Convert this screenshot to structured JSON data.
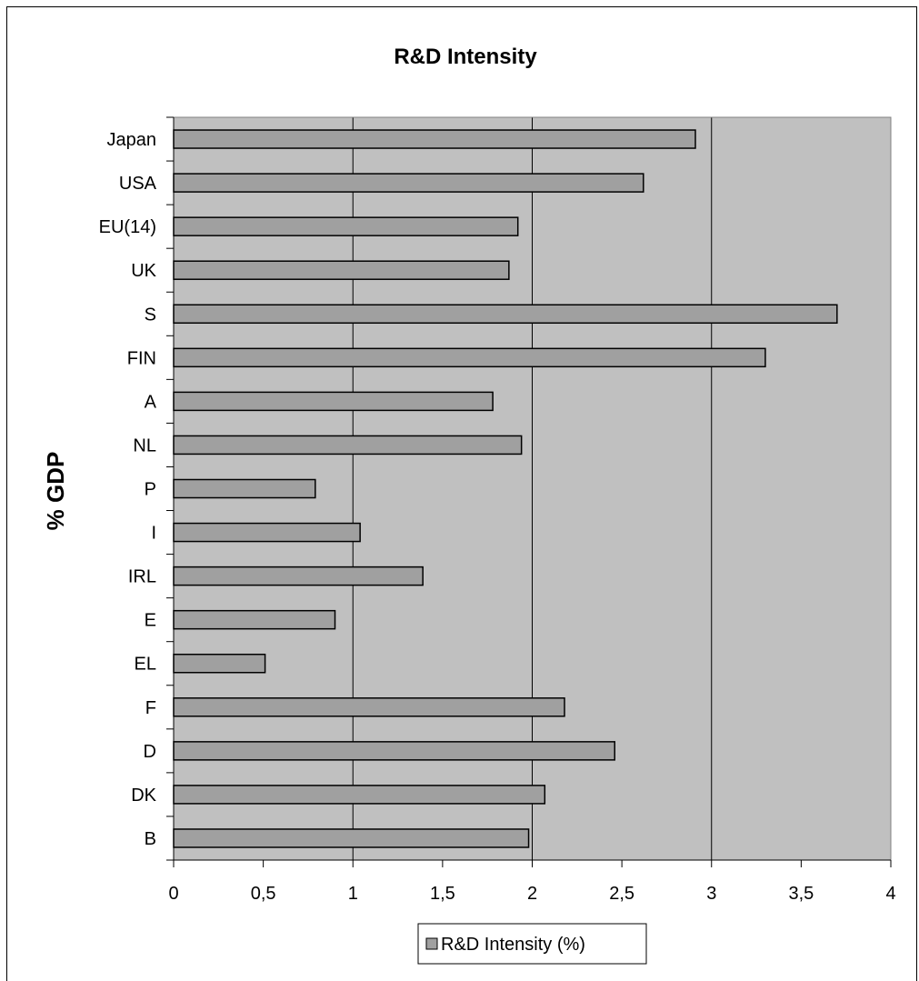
{
  "chart_data": {
    "type": "bar",
    "orientation": "horizontal",
    "title": "R&D Intensity",
    "xlabel": "",
    "ylabel": "% GDP",
    "xlim": [
      0,
      4
    ],
    "x_ticks": [
      0,
      0.5,
      1,
      1.5,
      2,
      2.5,
      3,
      3.5,
      4
    ],
    "x_tick_labels": [
      "0",
      "0,5",
      "1",
      "1,5",
      "2",
      "2,5",
      "3",
      "3,5",
      "4"
    ],
    "categories": [
      "Japan",
      "USA",
      "EU(14)",
      "UK",
      "S",
      "FIN",
      "A",
      "NL",
      "P",
      "I",
      "IRL",
      "E",
      "EL",
      "F",
      "D",
      "DK",
      "B"
    ],
    "series": [
      {
        "name": "R&D Intensity (%)",
        "values": [
          2.91,
          2.62,
          1.92,
          1.87,
          3.7,
          3.3,
          1.78,
          1.94,
          0.79,
          1.04,
          1.39,
          0.9,
          0.51,
          2.18,
          2.46,
          2.07,
          1.98
        ]
      }
    ],
    "grid": {
      "vertical": true,
      "horizontal": false
    },
    "legend": {
      "position": "bottom-center"
    },
    "colors": {
      "plot_background": "#c0c0c0",
      "bar_fill": "#a0a0a0",
      "bar_stroke": "#000000",
      "grid": "#000000"
    }
  }
}
